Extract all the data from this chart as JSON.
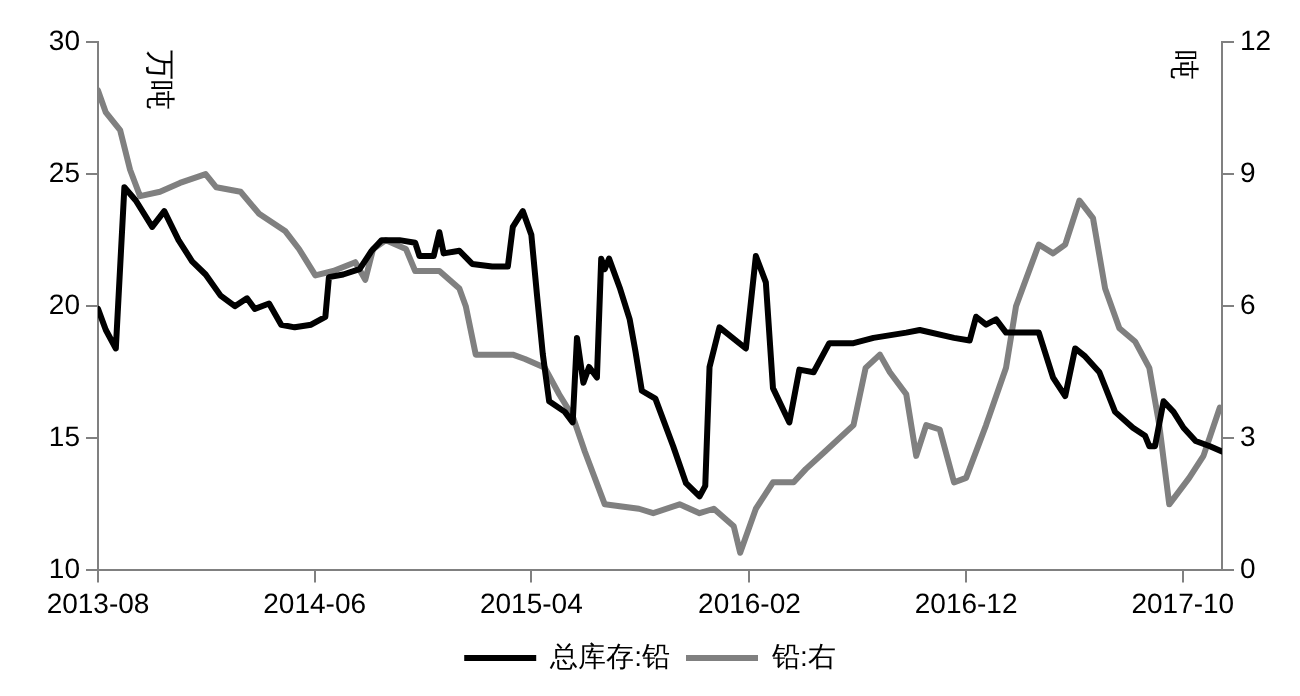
{
  "chart_data": {
    "type": "line",
    "ylabel": "万吨",
    "y2label": "吨",
    "xlim": [
      "2013-08-01",
      "2017-11-25"
    ],
    "xticks": [
      "2013-08",
      "2014-06",
      "2015-04",
      "2016-02",
      "2016-12",
      "2017-10"
    ],
    "ylim": [
      10,
      30
    ],
    "yticks": [
      10,
      15,
      20,
      25,
      30
    ],
    "y2lim": [
      0,
      12
    ],
    "y2ticks": [
      0,
      3,
      6,
      9,
      12
    ],
    "grid": false,
    "legend": "bottom",
    "marker": "none",
    "line_style": "solid",
    "series": [
      {
        "name": "总库存:铅",
        "color": "#000000",
        "x": [
          "2013-08-01",
          "2013-08-12",
          "2013-08-26",
          "2013-09-07",
          "2013-09-23",
          "2013-10-16",
          "2013-11-02",
          "2013-11-22",
          "2013-12-11",
          "2013-12-30",
          "2014-01-20",
          "2014-02-09",
          "2014-02-26",
          "2014-03-09",
          "2014-03-29",
          "2014-04-15",
          "2014-05-04",
          "2014-05-27",
          "2014-06-16",
          "2014-06-21",
          "2014-07-11",
          "2014-08-03",
          "2014-08-20",
          "2014-09-03",
          "2014-09-28",
          "2014-10-20",
          "2014-10-26",
          "2014-11-15",
          "2014-11-23",
          "2014-11-29",
          "2014-12-21",
          "2015-01-08",
          "2015-02-05",
          "2015-02-27",
          "2015-03-06",
          "2015-03-20",
          "2015-04-01",
          "2015-04-09",
          "2015-04-17",
          "2015-04-26",
          "2015-05-18",
          "2015-05-29",
          "2015-06-04",
          "2015-06-13",
          "2015-06-21",
          "2015-07-02",
          "2015-07-08",
          "2015-07-13",
          "2015-07-19",
          "2015-08-03",
          "2015-08-17",
          "2015-08-25",
          "2015-09-03",
          "2015-09-22",
          "2015-10-17",
          "2015-11-04",
          "2015-11-23",
          "2015-12-01",
          "2015-12-07",
          "2015-12-21",
          "2016-01-27",
          "2016-02-10",
          "2016-02-24",
          "2016-03-05",
          "2016-03-28",
          "2016-04-11",
          "2016-05-01",
          "2016-05-23",
          "2016-06-26",
          "2016-07-24",
          "2016-09-08",
          "2016-09-27",
          "2016-11-14",
          "2016-12-06",
          "2016-12-15",
          "2016-12-29",
          "2017-01-12",
          "2017-01-26",
          "2017-03-13",
          "2017-04-02",
          "2017-04-19",
          "2017-05-03",
          "2017-05-17",
          "2017-06-06",
          "2017-06-28",
          "2017-07-23",
          "2017-08-09",
          "2017-08-15",
          "2017-08-23",
          "2017-09-04",
          "2017-09-18",
          "2017-10-02",
          "2017-10-19",
          "2017-11-08",
          "2017-11-25"
        ],
        "values": [
          19.9,
          19.1,
          18.4,
          24.5,
          24.0,
          23.0,
          23.6,
          22.5,
          21.7,
          21.2,
          20.4,
          20.0,
          20.3,
          19.9,
          20.1,
          19.3,
          19.2,
          19.3,
          19.6,
          21.1,
          21.2,
          21.4,
          22.1,
          22.5,
          22.5,
          22.4,
          21.9,
          21.9,
          22.8,
          22.0,
          22.1,
          21.6,
          21.5,
          21.5,
          23.0,
          23.6,
          22.7,
          20.4,
          18.2,
          16.4,
          16.0,
          15.6,
          18.8,
          17.1,
          17.7,
          17.3,
          21.8,
          21.4,
          21.8,
          20.7,
          19.5,
          18.3,
          16.8,
          16.5,
          14.7,
          13.3,
          12.8,
          13.2,
          17.7,
          19.2,
          18.4,
          21.9,
          20.9,
          16.9,
          15.6,
          17.6,
          17.5,
          18.6,
          18.6,
          18.8,
          19.0,
          19.1,
          18.8,
          18.7,
          19.6,
          19.3,
          19.5,
          19.0,
          19.0,
          17.3,
          16.6,
          18.4,
          18.1,
          17.5,
          16.0,
          15.4,
          15.1,
          14.7,
          14.7,
          16.4,
          16.0,
          15.4,
          14.9,
          14.7,
          14.5
        ]
      },
      {
        "name": "铅:右",
        "color": "#808080",
        "axis": "y2",
        "x": [
          "2013-08-01",
          "2013-08-12",
          "2013-09-01",
          "2013-09-15",
          "2013-09-29",
          "2013-10-27",
          "2013-11-24",
          "2013-12-30",
          "2014-01-14",
          "2014-02-17",
          "2014-03-15",
          "2014-04-21",
          "2014-05-10",
          "2014-06-02",
          "2014-06-27",
          "2014-07-28",
          "2014-08-11",
          "2014-08-22",
          "2014-09-09",
          "2014-10-07",
          "2014-10-20",
          "2014-11-23",
          "2014-12-21",
          "2014-12-30",
          "2015-01-13",
          "2015-03-06",
          "2015-03-23",
          "2015-04-20",
          "2015-05-10",
          "2015-05-29",
          "2015-06-15",
          "2015-07-13",
          "2015-08-30",
          "2015-09-19",
          "2015-10-26",
          "2015-11-23",
          "2015-12-13",
          "2016-01-10",
          "2016-01-19",
          "2016-02-10",
          "2016-03-05",
          "2016-04-03",
          "2016-04-20",
          "2016-05-17",
          "2016-06-26",
          "2016-07-13",
          "2016-08-02",
          "2016-08-16",
          "2016-09-08",
          "2016-09-22",
          "2016-10-06",
          "2016-10-25",
          "2016-11-14",
          "2016-12-01",
          "2016-12-29",
          "2017-01-26",
          "2017-02-09",
          "2017-03-13",
          "2017-04-02",
          "2017-04-19",
          "2017-05-09",
          "2017-05-28",
          "2017-06-14",
          "2017-07-04",
          "2017-07-26",
          "2017-08-15",
          "2017-08-29",
          "2017-09-12",
          "2017-10-10",
          "2017-10-30",
          "2017-11-22"
        ],
        "values": [
          10.9,
          10.4,
          10.0,
          9.1,
          8.5,
          8.6,
          8.8,
          9.0,
          8.7,
          8.6,
          8.1,
          7.7,
          7.3,
          6.7,
          6.8,
          7.0,
          6.6,
          7.3,
          7.5,
          7.3,
          6.8,
          6.8,
          6.4,
          6.0,
          4.9,
          4.9,
          4.8,
          4.6,
          4.0,
          3.5,
          2.7,
          1.5,
          1.4,
          1.3,
          1.5,
          1.3,
          1.4,
          1.0,
          0.4,
          1.4,
          2.0,
          2.0,
          2.3,
          2.7,
          3.3,
          4.6,
          4.9,
          4.5,
          4.0,
          2.6,
          3.3,
          3.2,
          2.0,
          2.1,
          3.3,
          4.6,
          6.0,
          7.4,
          7.2,
          7.4,
          8.4,
          8.0,
          6.4,
          5.5,
          5.2,
          4.6,
          3.3,
          1.5,
          2.1,
          2.6,
          3.7
        ]
      }
    ]
  }
}
